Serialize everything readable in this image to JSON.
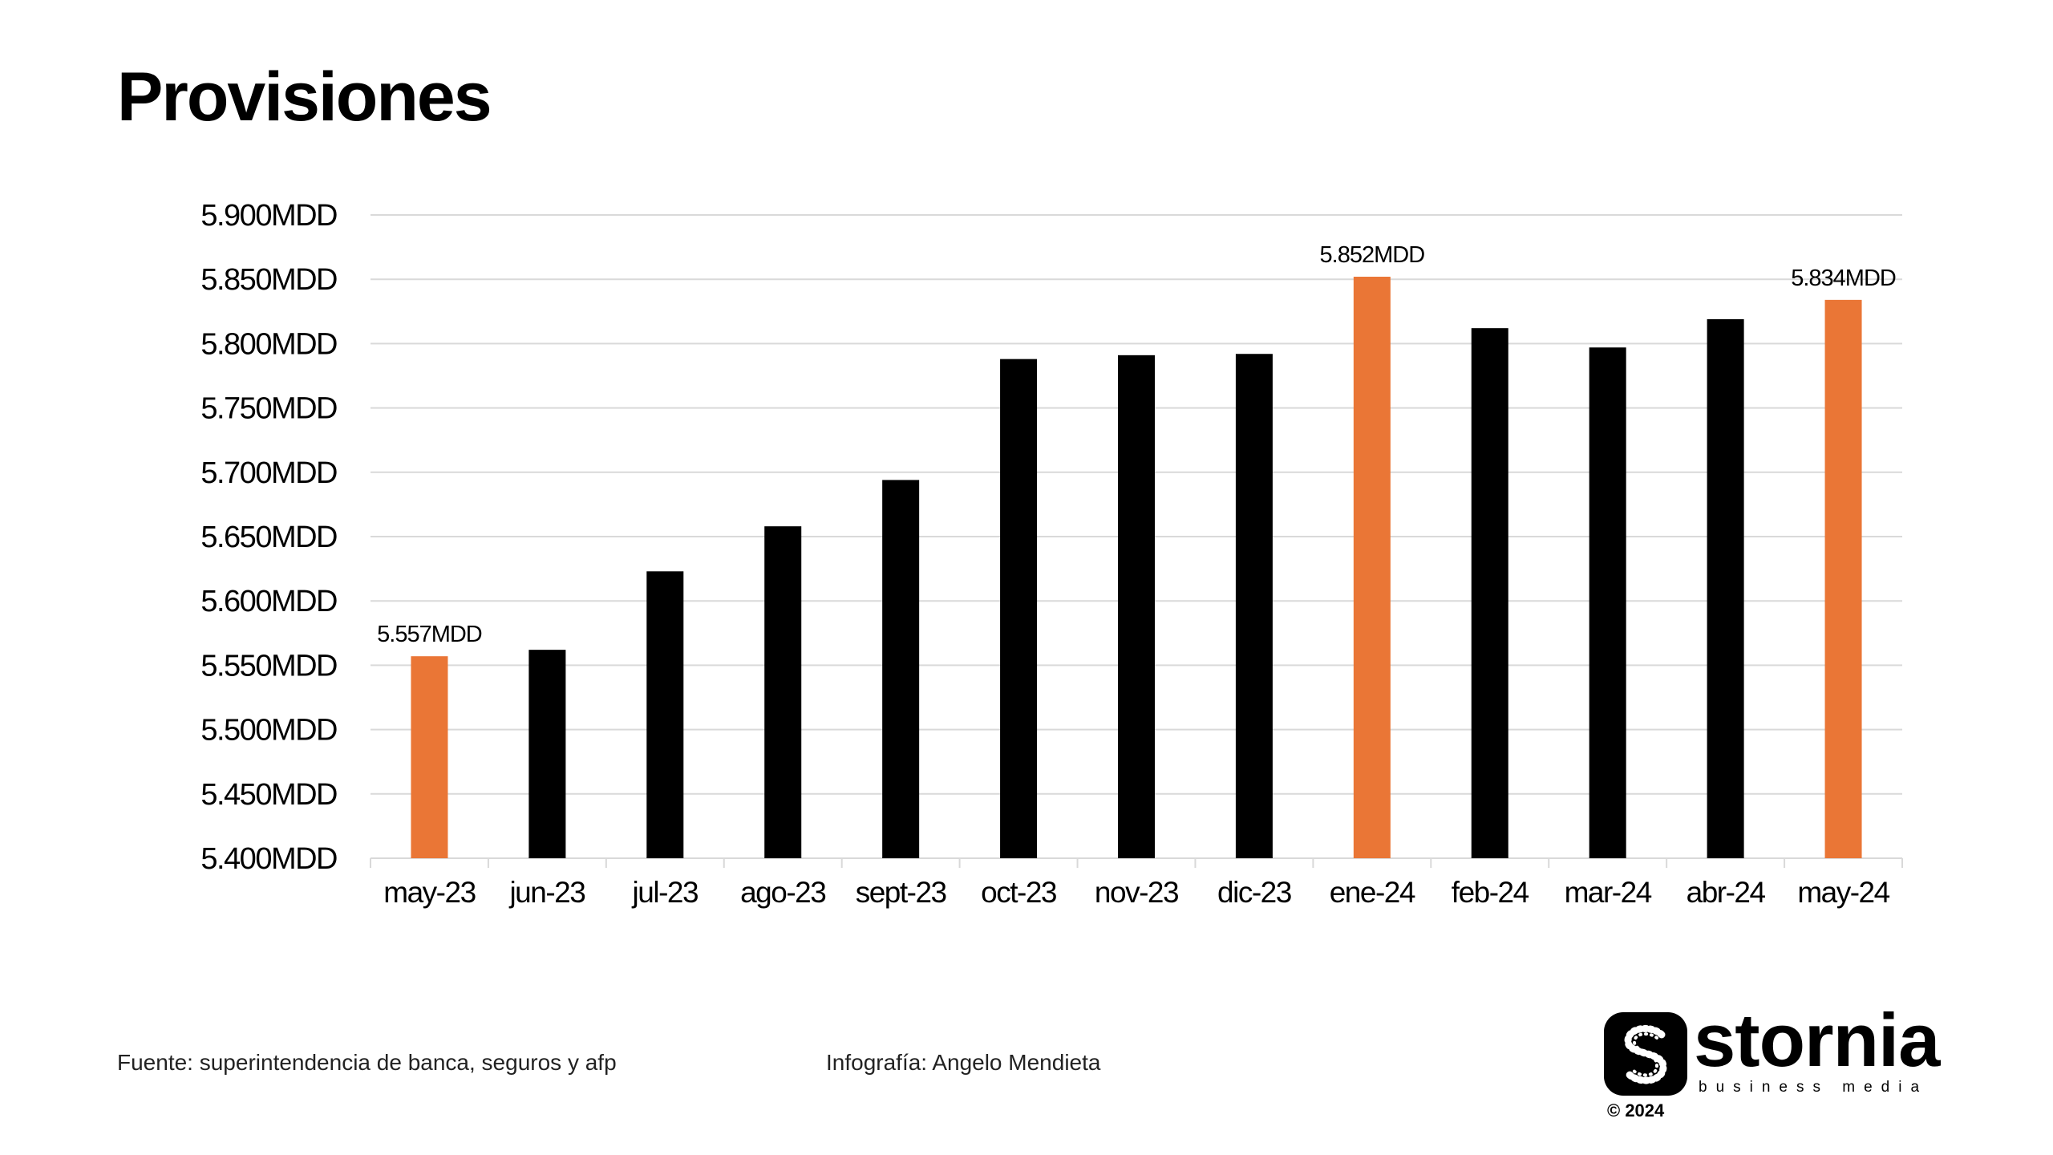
{
  "page": {
    "title": "Provisiones",
    "source": "Fuente: superintendencia de banca, seguros y afp",
    "credit": "Infografía: Angelo Mendieta"
  },
  "logo": {
    "name": "stornia",
    "tagline": "business media",
    "copyright": "© 2024",
    "icon": "stornia-s-mark-icon"
  },
  "colors": {
    "bar": "#000000",
    "highlight": "#EA7636",
    "grid": "#D9D9D9",
    "text": "#000000"
  },
  "chart_data": {
    "type": "bar",
    "title": "Provisiones",
    "xlabel": "",
    "ylabel": "",
    "categories": [
      "may-23",
      "jun-23",
      "jul-23",
      "ago-23",
      "sept-23",
      "oct-23",
      "nov-23",
      "dic-23",
      "ene-24",
      "feb-24",
      "mar-24",
      "abr-24",
      "may-24"
    ],
    "values": [
      5557,
      5562,
      5623,
      5658,
      5694,
      5788,
      5791,
      5792,
      5852,
      5812,
      5797,
      5819,
      5834
    ],
    "highlighted": [
      true,
      false,
      false,
      false,
      false,
      false,
      false,
      false,
      true,
      false,
      false,
      false,
      true
    ],
    "data_labels": [
      "5.557MDD",
      "",
      "",
      "",
      "",
      "",
      "",
      "",
      "5.852MDD",
      "",
      "",
      "",
      "5.834MDD"
    ],
    "ylim": [
      5400,
      5900
    ],
    "yticks": [
      5400,
      5450,
      5500,
      5550,
      5600,
      5650,
      5700,
      5750,
      5800,
      5850,
      5900
    ],
    "ytick_labels": [
      "5.400MDD",
      "5.450MDD",
      "5.500MDD",
      "5.550MDD",
      "5.600MDD",
      "5.650MDD",
      "5.700MDD",
      "5.750MDD",
      "5.800MDD",
      "5.850MDD",
      "5.900MDD"
    ],
    "grid": true,
    "legend": "none"
  }
}
